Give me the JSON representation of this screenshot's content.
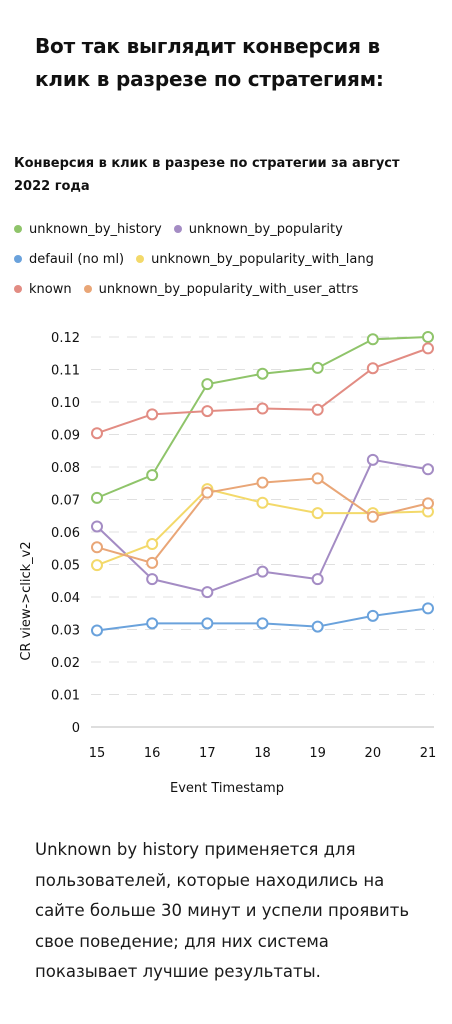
{
  "headline": "Вот так выглядит конверсия в клик в разрезе по стратегиям:",
  "caption": "Unknown by history применяется для пользователей, которые находились на сайте больше 30 минут и успели проявить свое поведение; для них система показывает лучшие результаты.",
  "chart_data": {
    "type": "line",
    "title": "Конверсия в клик в разрезе по стратегии за август 2022 года",
    "xlabel": "Event Timestamp",
    "ylabel": "CR view->click_v2",
    "x": [
      15,
      16,
      17,
      18,
      19,
      20,
      21
    ],
    "x_tick_labels": [
      "15",
      "16",
      "17",
      "18",
      "19",
      "20",
      "21"
    ],
    "ylim": [
      0,
      0.12
    ],
    "y_ticks": [
      0,
      0.01,
      0.02,
      0.03,
      0.04,
      0.05,
      0.06,
      0.07,
      0.08,
      0.09,
      0.1,
      0.11,
      0.12
    ],
    "y_tick_labels": [
      "0",
      "0.01",
      "0.02",
      "0.03",
      "0.04",
      "0.05",
      "0.06",
      "0.07",
      "0.08",
      "0.09",
      "0.10",
      "0.11",
      "0.12"
    ],
    "grid": "horizontal-dashed",
    "legend_placement": "top",
    "series": [
      {
        "name": "unknown_by_history",
        "color": "#8fc46a",
        "values": [
          0.0705,
          0.0775,
          0.1055,
          0.1087,
          0.1105,
          0.1193,
          0.12
        ]
      },
      {
        "name": "unknown_by_popularity",
        "color": "#a48cc4",
        "values": [
          0.0617,
          0.0455,
          0.0415,
          0.0478,
          0.0455,
          0.0822,
          0.0793
        ]
      },
      {
        "name": "defauil (no ml)",
        "color": "#6aa2dc",
        "values": [
          0.0297,
          0.0319,
          0.0319,
          0.0319,
          0.0309,
          0.0342,
          0.0365
        ]
      },
      {
        "name": "unknown_by_popularity_with_lang",
        "color": "#f3d96a",
        "values": [
          0.0498,
          0.0563,
          0.0732,
          0.069,
          0.0658,
          0.0658,
          0.0663
        ]
      },
      {
        "name": "known",
        "color": "#e28c83",
        "values": [
          0.0904,
          0.0962,
          0.0972,
          0.098,
          0.0976,
          0.1104,
          0.1165
        ]
      },
      {
        "name": "unknown_by_popularity_with_user_attrs",
        "color": "#e9a677",
        "values": [
          0.0553,
          0.0505,
          0.0721,
          0.0752,
          0.0765,
          0.0647,
          0.0688
        ]
      }
    ]
  }
}
